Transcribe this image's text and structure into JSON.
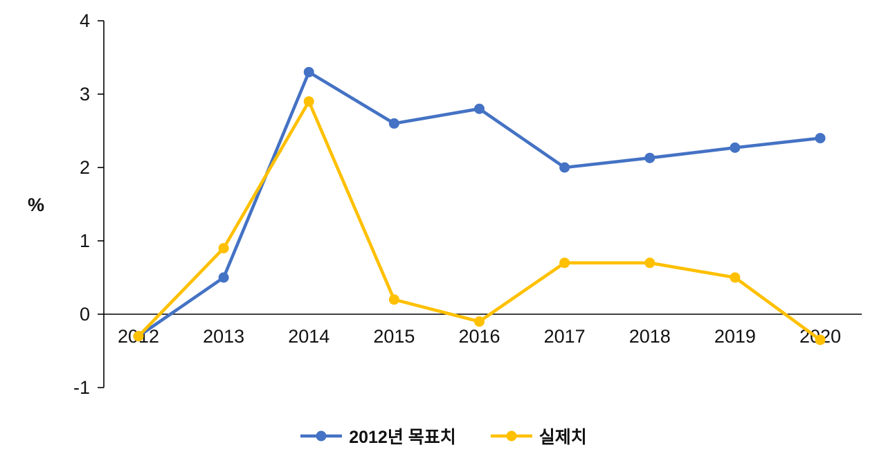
{
  "chart_data": {
    "type": "line",
    "title": "",
    "xlabel": "",
    "ylabel": "%",
    "categories": [
      "2012",
      "2013",
      "2014",
      "2015",
      "2016",
      "2017",
      "2018",
      "2019",
      "2020"
    ],
    "series": [
      {
        "name": "2012년 목표치",
        "color": "#4472C4",
        "values": [
          -0.3,
          0.5,
          3.3,
          2.6,
          2.8,
          2.0,
          2.13,
          2.27,
          2.4
        ]
      },
      {
        "name": "실제치",
        "color": "#FFC000",
        "values": [
          -0.3,
          0.9,
          2.9,
          0.2,
          -0.1,
          0.7,
          0.7,
          0.5,
          -0.35
        ]
      }
    ],
    "ylim": [
      -1,
      4
    ],
    "yticks": [
      4,
      3,
      2,
      1,
      0,
      -1
    ],
    "grid": false,
    "legend_position": "bottom",
    "axis_color": "#000000",
    "text_color": "#111111"
  }
}
